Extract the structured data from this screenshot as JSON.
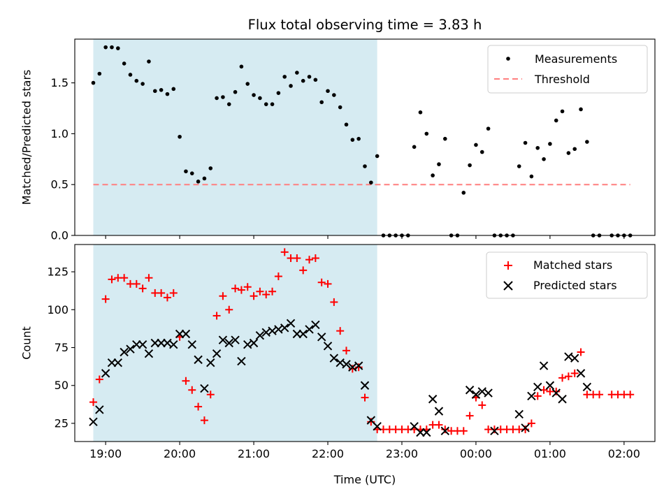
{
  "colors": {
    "shade": "#add8e6",
    "measurement": "#000000",
    "threshold": "#ff7f7f",
    "matched": "#ff0000",
    "predicted": "#000000"
  },
  "chart_data": [
    {
      "type": "scatter",
      "title": "Flux total observing time = 3.83 h",
      "xlabel": "",
      "ylabel": "Matched/Predicted stars",
      "xlim": [
        "18:35",
        "02:25"
      ],
      "ylim": [
        0,
        1.93
      ],
      "xticks": [
        "19:00",
        "20:00",
        "21:00",
        "22:00",
        "23:00",
        "00:00",
        "01:00",
        "02:00"
      ],
      "yticks": [
        "0.0",
        "0.5",
        "1.0",
        "1.5"
      ],
      "shaded_span": [
        "18:50",
        "22:40"
      ],
      "legend": {
        "placement": "top-right",
        "entries": [
          "Measurements",
          "Threshold"
        ]
      },
      "series": [
        {
          "name": "Measurements",
          "marker": "dot",
          "points": [
            [
              "18:50",
              1.5
            ],
            [
              "18:55",
              1.59
            ],
            [
              "19:00",
              1.85
            ],
            [
              "19:05",
              1.85
            ],
            [
              "19:10",
              1.84
            ],
            [
              "19:15",
              1.69
            ],
            [
              "19:20",
              1.58
            ],
            [
              "19:25",
              1.52
            ],
            [
              "19:30",
              1.49
            ],
            [
              "19:35",
              1.71
            ],
            [
              "19:40",
              1.42
            ],
            [
              "19:45",
              1.43
            ],
            [
              "19:50",
              1.39
            ],
            [
              "19:55",
              1.44
            ],
            [
              "20:00",
              0.97
            ],
            [
              "20:05",
              0.63
            ],
            [
              "20:10",
              0.61
            ],
            [
              "20:15",
              0.53
            ],
            [
              "20:20",
              0.56
            ],
            [
              "20:25",
              0.66
            ],
            [
              "20:30",
              1.35
            ],
            [
              "20:35",
              1.36
            ],
            [
              "20:40",
              1.29
            ],
            [
              "20:45",
              1.41
            ],
            [
              "20:50",
              1.66
            ],
            [
              "20:55",
              1.49
            ],
            [
              "21:00",
              1.38
            ],
            [
              "21:05",
              1.35
            ],
            [
              "21:10",
              1.29
            ],
            [
              "21:15",
              1.29
            ],
            [
              "21:20",
              1.4
            ],
            [
              "21:25",
              1.56
            ],
            [
              "21:30",
              1.47
            ],
            [
              "21:35",
              1.6
            ],
            [
              "21:40",
              1.52
            ],
            [
              "21:45",
              1.56
            ],
            [
              "21:50",
              1.53
            ],
            [
              "21:55",
              1.31
            ],
            [
              "22:00",
              1.42
            ],
            [
              "22:05",
              1.38
            ],
            [
              "22:10",
              1.26
            ],
            [
              "22:15",
              1.09
            ],
            [
              "22:20",
              0.94
            ],
            [
              "22:25",
              0.95
            ],
            [
              "22:30",
              0.68
            ],
            [
              "22:35",
              0.52
            ],
            [
              "22:40",
              0.78
            ],
            [
              "22:45",
              0.0
            ],
            [
              "22:50",
              0.0
            ],
            [
              "22:55",
              0.0
            ],
            [
              "23:00",
              0.0
            ],
            [
              "23:05",
              0.0
            ],
            [
              "23:10",
              0.87
            ],
            [
              "23:15",
              1.21
            ],
            [
              "23:20",
              1.0
            ],
            [
              "23:25",
              0.59
            ],
            [
              "23:30",
              0.7
            ],
            [
              "23:35",
              0.95
            ],
            [
              "23:40",
              0.0
            ],
            [
              "23:45",
              0.0
            ],
            [
              "23:50",
              0.42
            ],
            [
              "23:55",
              0.69
            ],
            [
              "00:00",
              0.89
            ],
            [
              "00:05",
              0.82
            ],
            [
              "00:10",
              1.05
            ],
            [
              "00:15",
              0.0
            ],
            [
              "00:20",
              0.0
            ],
            [
              "00:25",
              0.0
            ],
            [
              "00:30",
              0.0
            ],
            [
              "00:35",
              0.68
            ],
            [
              "00:40",
              0.91
            ],
            [
              "00:45",
              0.58
            ],
            [
              "00:50",
              0.86
            ],
            [
              "00:55",
              0.75
            ],
            [
              "01:00",
              0.9
            ],
            [
              "01:05",
              1.13
            ],
            [
              "01:10",
              1.22
            ],
            [
              "01:15",
              0.81
            ],
            [
              "01:20",
              0.85
            ],
            [
              "01:25",
              1.24
            ],
            [
              "01:30",
              0.92
            ],
            [
              "01:35",
              0.0
            ],
            [
              "01:40",
              0.0
            ],
            [
              "01:50",
              0.0
            ],
            [
              "01:55",
              0.0
            ],
            [
              "02:00",
              0.0
            ],
            [
              "02:05",
              0.0
            ]
          ]
        },
        {
          "name": "Threshold",
          "style": "dashed-line",
          "points": [
            [
              "18:50",
              0.5
            ],
            [
              "02:05",
              0.5
            ]
          ]
        }
      ]
    },
    {
      "type": "scatter",
      "title": "",
      "xlabel": "Time (UTC)",
      "ylabel": "Count",
      "xlim": [
        "18:35",
        "02:25"
      ],
      "ylim": [
        13,
        143
      ],
      "xticks": [
        "19:00",
        "20:00",
        "21:00",
        "22:00",
        "23:00",
        "00:00",
        "01:00",
        "02:00"
      ],
      "yticks": [
        "25",
        "50",
        "75",
        "100",
        "125"
      ],
      "shaded_span": [
        "18:50",
        "22:40"
      ],
      "legend": {
        "placement": "top-right",
        "entries": [
          "Matched stars",
          "Predicted stars"
        ]
      },
      "series": [
        {
          "name": "Matched stars",
          "marker": "plus",
          "points": [
            [
              "18:50",
              39
            ],
            [
              "18:55",
              54
            ],
            [
              "19:00",
              107
            ],
            [
              "19:05",
              120
            ],
            [
              "19:10",
              121
            ],
            [
              "19:15",
              121
            ],
            [
              "19:20",
              117
            ],
            [
              "19:25",
              117
            ],
            [
              "19:30",
              114
            ],
            [
              "19:35",
              121
            ],
            [
              "19:40",
              111
            ],
            [
              "19:45",
              111
            ],
            [
              "19:50",
              108
            ],
            [
              "19:55",
              111
            ],
            [
              "20:00",
              82
            ],
            [
              "20:05",
              53
            ],
            [
              "20:10",
              47
            ],
            [
              "20:15",
              36
            ],
            [
              "20:20",
              27
            ],
            [
              "20:25",
              44
            ],
            [
              "20:30",
              96
            ],
            [
              "20:35",
              109
            ],
            [
              "20:40",
              100
            ],
            [
              "20:45",
              114
            ],
            [
              "20:50",
              113
            ],
            [
              "20:55",
              115
            ],
            [
              "21:00",
              109
            ],
            [
              "21:05",
              112
            ],
            [
              "21:10",
              110
            ],
            [
              "21:15",
              112
            ],
            [
              "21:20",
              122
            ],
            [
              "21:25",
              138
            ],
            [
              "21:30",
              134
            ],
            [
              "21:35",
              134
            ],
            [
              "21:40",
              126
            ],
            [
              "21:45",
              133
            ],
            [
              "21:50",
              134
            ],
            [
              "21:55",
              118
            ],
            [
              "22:00",
              117
            ],
            [
              "22:05",
              105
            ],
            [
              "22:10",
              86
            ],
            [
              "22:15",
              73
            ],
            [
              "22:20",
              61
            ],
            [
              "22:25",
              62
            ],
            [
              "22:30",
              42
            ],
            [
              "22:35",
              26
            ],
            [
              "22:40",
              21
            ],
            [
              "22:45",
              21
            ],
            [
              "22:50",
              21
            ],
            [
              "22:55",
              21
            ],
            [
              "23:00",
              21
            ],
            [
              "23:05",
              21
            ],
            [
              "23:10",
              21
            ],
            [
              "23:15",
              21
            ],
            [
              "23:20",
              21
            ],
            [
              "23:25",
              24
            ],
            [
              "23:30",
              24
            ],
            [
              "23:35",
              21
            ],
            [
              "23:40",
              20
            ],
            [
              "23:45",
              20
            ],
            [
              "23:50",
              20
            ],
            [
              "23:55",
              30
            ],
            [
              "00:00",
              42
            ],
            [
              "00:05",
              37
            ],
            [
              "00:10",
              21
            ],
            [
              "00:15",
              21
            ],
            [
              "00:20",
              21
            ],
            [
              "00:25",
              21
            ],
            [
              "00:30",
              21
            ],
            [
              "00:35",
              21
            ],
            [
              "00:40",
              21
            ],
            [
              "00:45",
              25
            ],
            [
              "00:50",
              43
            ],
            [
              "00:55",
              47
            ],
            [
              "01:00",
              46
            ],
            [
              "01:05",
              46
            ],
            [
              "01:10",
              55
            ],
            [
              "01:15",
              56
            ],
            [
              "01:20",
              58
            ],
            [
              "01:25",
              72
            ],
            [
              "01:30",
              44
            ],
            [
              "01:35",
              44
            ],
            [
              "01:40",
              44
            ],
            [
              "01:50",
              44
            ],
            [
              "01:55",
              44
            ],
            [
              "02:00",
              44
            ],
            [
              "02:05",
              44
            ]
          ]
        },
        {
          "name": "Predicted stars",
          "marker": "x",
          "points": [
            [
              "18:50",
              26
            ],
            [
              "18:55",
              34
            ],
            [
              "19:00",
              58
            ],
            [
              "19:05",
              65
            ],
            [
              "19:10",
              65
            ],
            [
              "19:15",
              72
            ],
            [
              "19:20",
              74
            ],
            [
              "19:25",
              77
            ],
            [
              "19:30",
              77
            ],
            [
              "19:35",
              71
            ],
            [
              "19:40",
              78
            ],
            [
              "19:45",
              78
            ],
            [
              "19:50",
              78
            ],
            [
              "19:55",
              77
            ],
            [
              "20:00",
              84
            ],
            [
              "20:05",
              84
            ],
            [
              "20:10",
              77
            ],
            [
              "20:15",
              67
            ],
            [
              "20:20",
              48
            ],
            [
              "20:25",
              65
            ],
            [
              "20:30",
              71
            ],
            [
              "20:35",
              80
            ],
            [
              "20:40",
              78
            ],
            [
              "20:45",
              80
            ],
            [
              "20:50",
              66
            ],
            [
              "20:55",
              77
            ],
            [
              "21:00",
              78
            ],
            [
              "21:05",
              83
            ],
            [
              "21:10",
              85
            ],
            [
              "21:15",
              86
            ],
            [
              "21:20",
              87
            ],
            [
              "21:25",
              88
            ],
            [
              "21:30",
              91
            ],
            [
              "21:35",
              84
            ],
            [
              "21:40",
              84
            ],
            [
              "21:45",
              87
            ],
            [
              "21:50",
              90
            ],
            [
              "21:55",
              82
            ],
            [
              "22:00",
              76
            ],
            [
              "22:05",
              68
            ],
            [
              "22:10",
              65
            ],
            [
              "22:15",
              64
            ],
            [
              "22:20",
              62
            ],
            [
              "22:25",
              63
            ],
            [
              "22:30",
              50
            ],
            [
              "22:35",
              27
            ],
            [
              "22:40",
              23
            ],
            [
              "23:10",
              23
            ],
            [
              "23:15",
              19
            ],
            [
              "23:20",
              19
            ],
            [
              "23:25",
              41
            ],
            [
              "23:30",
              33
            ],
            [
              "23:35",
              20
            ],
            [
              "23:55",
              47
            ],
            [
              "00:00",
              44
            ],
            [
              "00:05",
              46
            ],
            [
              "00:10",
              45
            ],
            [
              "00:15",
              20
            ],
            [
              "00:35",
              31
            ],
            [
              "00:40",
              22
            ],
            [
              "00:45",
              43
            ],
            [
              "00:50",
              49
            ],
            [
              "00:55",
              63
            ],
            [
              "01:00",
              50
            ],
            [
              "01:05",
              45
            ],
            [
              "01:10",
              41
            ],
            [
              "01:15",
              69
            ],
            [
              "01:20",
              68
            ],
            [
              "01:25",
              58
            ],
            [
              "01:30",
              49
            ]
          ]
        }
      ]
    }
  ]
}
